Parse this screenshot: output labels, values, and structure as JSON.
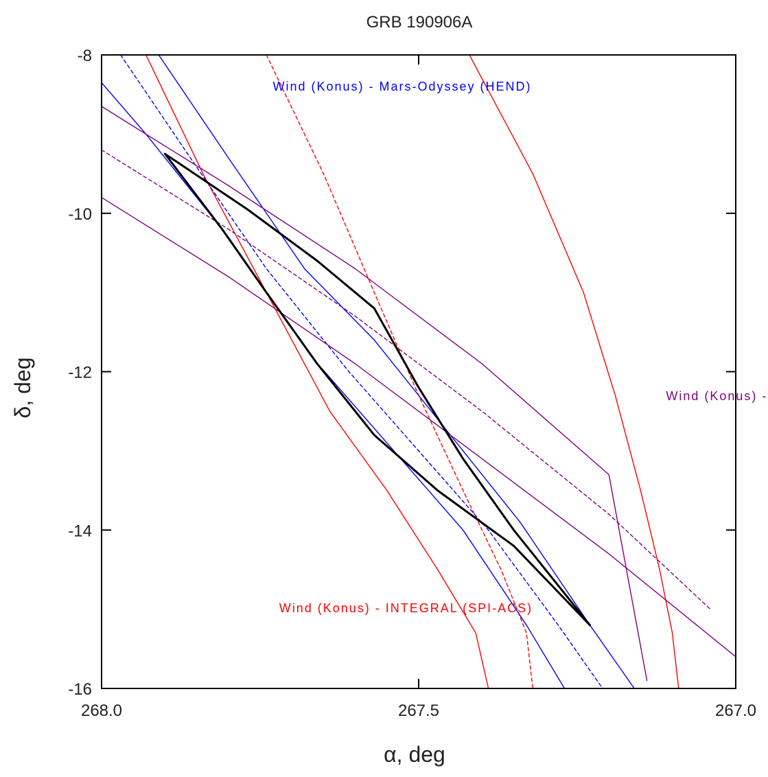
{
  "chart_data": {
    "type": "line",
    "title": "GRB 190906A",
    "xlabel": "α, deg",
    "ylabel": "δ, deg",
    "xlim": [
      268.0,
      267.0
    ],
    "ylim": [
      -16,
      -8
    ],
    "x_reversed": true,
    "x_ticks": [
      268.0,
      267.5,
      267.0
    ],
    "x_tick_labels": [
      "268.0",
      "267.5",
      "267.0"
    ],
    "y_ticks": [
      -8,
      -10,
      -12,
      -14,
      -16
    ],
    "y_tick_labels": [
      "-8",
      "-10",
      "-12",
      "-14",
      "-16"
    ],
    "grid": false,
    "series": [
      {
        "color": "#ff0000",
        "style": "solid",
        "x": [
          267.93,
          267.84,
          267.74,
          267.64,
          267.55,
          267.47,
          267.41,
          267.39
        ],
        "y": [
          -8.0,
          -9.5,
          -11.0,
          -12.5,
          -13.5,
          -14.5,
          -15.3,
          -16.0
        ]
      },
      {
        "color": "#ff0000",
        "style": "dashed",
        "x": [
          267.74,
          267.65,
          267.57,
          267.5,
          267.43,
          267.37,
          267.33,
          267.32
        ],
        "y": [
          -8.0,
          -9.5,
          -11.0,
          -12.3,
          -13.5,
          -14.5,
          -15.3,
          -16.0
        ]
      },
      {
        "color": "#ff0000",
        "style": "solid",
        "x": [
          267.42,
          267.32,
          267.24,
          267.19,
          267.15,
          267.12,
          267.1,
          267.09
        ],
        "y": [
          -8.0,
          -9.5,
          -11.0,
          -12.3,
          -13.5,
          -14.5,
          -15.3,
          -16.0
        ]
      },
      {
        "color": "#0000ff",
        "style": "solid",
        "x": [
          268.0,
          267.93,
          267.8,
          267.67,
          267.55,
          267.43,
          267.33,
          267.27
        ],
        "y": [
          -8.35,
          -9.0,
          -10.3,
          -11.8,
          -12.9,
          -14.0,
          -15.2,
          -16.0
        ]
      },
      {
        "color": "#0000ff",
        "style": "dashed",
        "x": [
          267.97,
          267.86,
          267.74,
          267.61,
          267.5,
          267.39,
          267.28,
          267.21
        ],
        "y": [
          -8.0,
          -9.3,
          -10.7,
          -12.0,
          -13.0,
          -14.0,
          -15.2,
          -16.0
        ]
      },
      {
        "color": "#0000ff",
        "style": "solid",
        "x": [
          267.91,
          267.8,
          267.68,
          267.57,
          267.46,
          267.34,
          267.23,
          267.16
        ],
        "y": [
          -8.0,
          -9.3,
          -10.7,
          -11.6,
          -12.7,
          -13.9,
          -15.2,
          -16.0
        ]
      },
      {
        "color": "#800080",
        "style": "solid",
        "x": [
          268.0,
          267.8,
          267.6,
          267.4,
          267.2,
          267.0
        ],
        "y": [
          -9.8,
          -10.8,
          -11.9,
          -13.1,
          -14.3,
          -15.6
        ]
      },
      {
        "color": "#800080",
        "style": "dashed",
        "x": [
          268.0,
          267.8,
          267.6,
          267.4,
          267.2,
          267.04
        ],
        "y": [
          -9.2,
          -10.2,
          -11.3,
          -12.5,
          -13.8,
          -15.0
        ]
      },
      {
        "color": "#800080",
        "style": "solid",
        "x": [
          268.0,
          267.8,
          267.6,
          267.4,
          267.2,
          267.14
        ],
        "y": [
          -8.65,
          -9.65,
          -10.7,
          -11.9,
          -13.3,
          -15.9
        ]
      },
      {
        "color": "#000000",
        "style": "bold",
        "x": [
          267.9,
          267.77,
          267.66,
          267.57,
          267.5,
          267.43,
          267.35,
          267.23
        ],
        "y": [
          -9.25,
          -9.95,
          -10.6,
          -11.2,
          -12.2,
          -13.1,
          -14.0,
          -15.2
        ]
      },
      {
        "color": "#000000",
        "style": "bold",
        "x": [
          267.9,
          267.81,
          267.74,
          267.66,
          267.57,
          267.47,
          267.35,
          267.23
        ],
        "y": [
          -9.25,
          -10.2,
          -11.0,
          -11.9,
          -12.8,
          -13.5,
          -14.2,
          -15.2
        ]
      }
    ],
    "annotations": [
      {
        "text": "Wind (Konus) - Mars-Odyssey (HEND)",
        "x": 267.73,
        "y": -8.45,
        "colors": [
          "#0000ff",
          "#800080"
        ]
      },
      {
        "text": "Wind (Konus) - Swift (BAT)",
        "x": 267.11,
        "y": -12.36,
        "colors": [
          "#800080"
        ]
      },
      {
        "text": "Wind (Konus) - INTEGRAL (SPI-ACS)",
        "x": 267.72,
        "y": -15.04,
        "colors": [
          "#ff0000",
          "#c9a800",
          "#ff00ff"
        ]
      }
    ]
  }
}
